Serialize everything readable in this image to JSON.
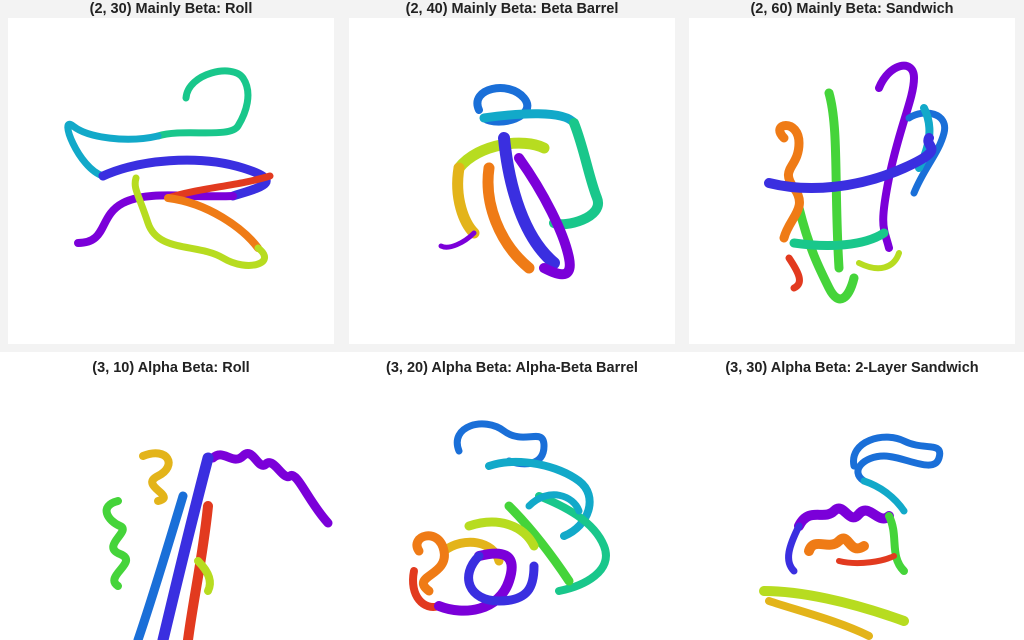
{
  "panels": [
    {
      "title": "(2, 30) Mainly Beta: Roll"
    },
    {
      "title": "(2, 40) Mainly Beta: Beta Barrel"
    },
    {
      "title": "(2, 60) Mainly Beta: Sandwich"
    },
    {
      "title": "(3, 10) Alpha Beta: Roll"
    },
    {
      "title": "(3, 20) Alpha Beta: Alpha-Beta Barrel"
    },
    {
      "title": "(3, 30) Alpha Beta: 2-Layer Sandwich"
    }
  ],
  "ribbon_palette": [
    "#7b00d9",
    "#3a2fe0",
    "#1a6fd8",
    "#12a9c9",
    "#19c78b",
    "#45d43a",
    "#b7dc20",
    "#e3b41a",
    "#ef7b16",
    "#e23a1f"
  ]
}
